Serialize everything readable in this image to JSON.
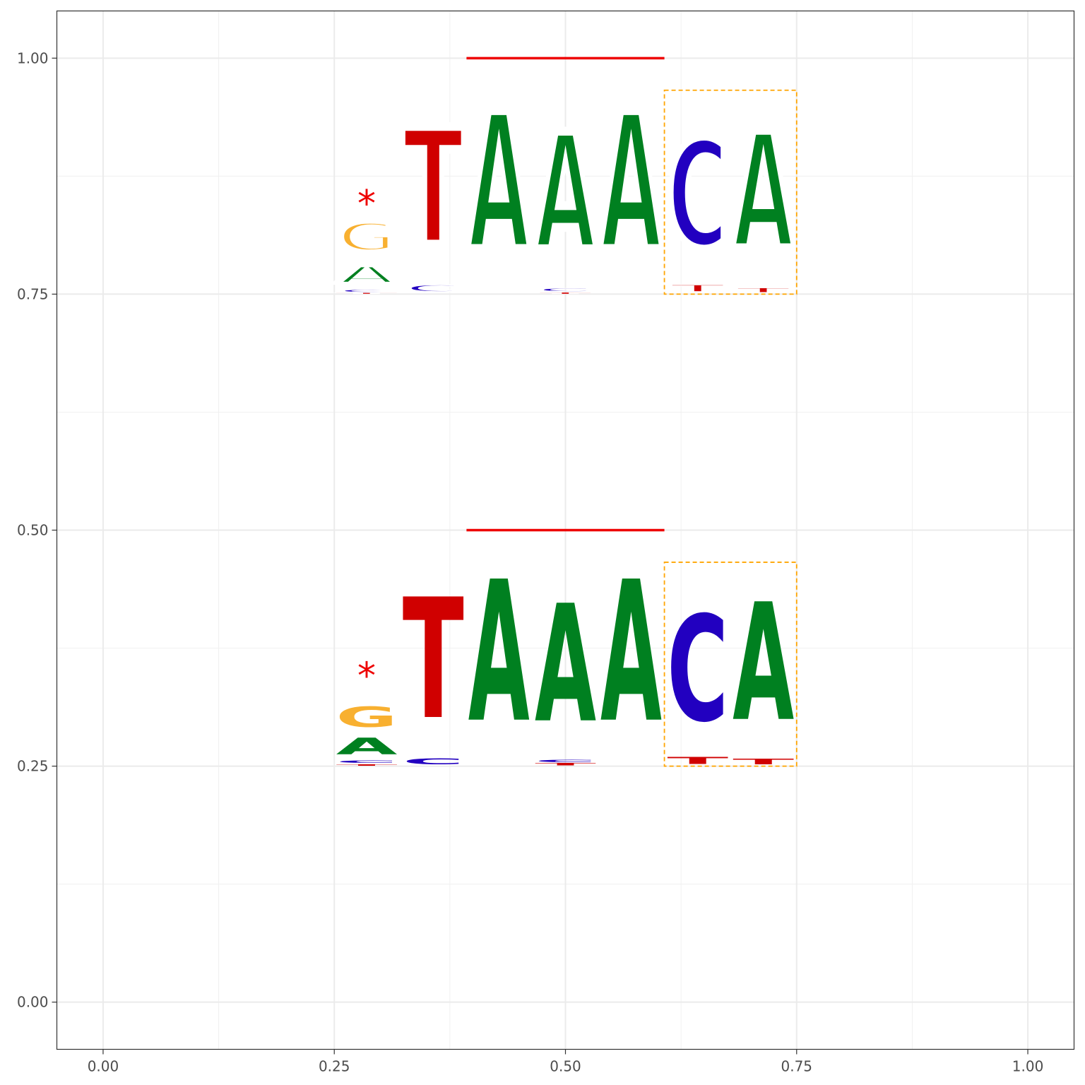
{
  "chart_data": {
    "type": "sequence-logo",
    "title": "",
    "xlabel": "",
    "ylabel": "",
    "xlim": [
      -0.05,
      1.05
    ],
    "ylim": [
      -0.05,
      1.05
    ],
    "x_ticks": [
      0.0,
      0.25,
      0.5,
      0.75,
      1.0
    ],
    "x_tick_labels": [
      "0.00",
      "0.25",
      "0.50",
      "0.75",
      "1.00"
    ],
    "y_ticks": [
      0.0,
      0.25,
      0.5,
      0.75,
      1.0
    ],
    "y_tick_labels": [
      "0.00",
      "0.25",
      "0.50",
      "0.75",
      "1.00"
    ],
    "grid": true,
    "colors": {
      "A": "#008020",
      "C": "#2200c0",
      "G": "#f8b030",
      "T": "#d00000",
      "marker": "#ee0000",
      "box": "#ffa500"
    },
    "positions_x": [
      0.285,
      0.357,
      0.428,
      0.5,
      0.571,
      0.643,
      0.714
    ],
    "position_width": 0.0714,
    "logos": [
      {
        "name": "top-logo",
        "style": "outline",
        "baseline": 0.75,
        "columns": [
          [
            {
              "letter": "T",
              "height": 0.0015
            },
            {
              "letter": "C",
              "height": 0.004
            },
            {
              "letter": "A",
              "height": 0.03
            },
            {
              "letter": "G",
              "height": 0.05
            }
          ],
          [
            {
              "letter": "C",
              "height": 0.012
            },
            {
              "letter": "T",
              "height": 0.2
            }
          ],
          [
            {
              "letter": "A",
              "height": 0.235
            }
          ],
          [
            {
              "letter": "T",
              "height": 0.002
            },
            {
              "letter": "C",
              "height": 0.005
            },
            {
              "letter": "A",
              "height": 0.2
            }
          ],
          [
            {
              "letter": "A",
              "height": 0.235
            }
          ],
          [
            {
              "letter": "T",
              "height": 0.012
            },
            {
              "letter": "C",
              "height": 0.185
            }
          ],
          [
            {
              "letter": "T",
              "height": 0.008
            },
            {
              "letter": "A",
              "height": 0.2
            }
          ]
        ],
        "star": {
          "x": 0.285,
          "y": 0.855,
          "label": "*"
        },
        "line": {
          "x0": 0.393,
          "x1": 0.607,
          "y": 1.0
        },
        "box": {
          "x0": 0.607,
          "x1": 0.75,
          "y0": 0.75,
          "y1": 0.966
        }
      },
      {
        "name": "bottom-logo",
        "style": "filled",
        "baseline": 0.25,
        "columns": [
          [
            {
              "letter": "T",
              "height": 0.0025
            },
            {
              "letter": "C",
              "height": 0.004
            },
            {
              "letter": "A",
              "height": 0.028
            },
            {
              "letter": "G",
              "height": 0.034
            }
          ],
          [
            {
              "letter": "C",
              "height": 0.01
            },
            {
              "letter": "T",
              "height": 0.205
            }
          ],
          [
            {
              "letter": "A",
              "height": 0.24
            }
          ],
          [
            {
              "letter": "T",
              "height": 0.0035
            },
            {
              "letter": "C",
              "height": 0.004
            },
            {
              "letter": "A",
              "height": 0.2
            }
          ],
          [
            {
              "letter": "A",
              "height": 0.24
            }
          ],
          [
            {
              "letter": "T",
              "height": 0.012
            },
            {
              "letter": "C",
              "height": 0.18
            }
          ],
          [
            {
              "letter": "T",
              "height": 0.009
            },
            {
              "letter": "A",
              "height": 0.2
            }
          ]
        ],
        "star": {
          "x": 0.285,
          "y": 0.355,
          "label": "*"
        },
        "line": {
          "x0": 0.393,
          "x1": 0.607,
          "y": 0.5
        },
        "box": {
          "x0": 0.607,
          "x1": 0.75,
          "y0": 0.25,
          "y1": 0.466
        }
      }
    ]
  }
}
